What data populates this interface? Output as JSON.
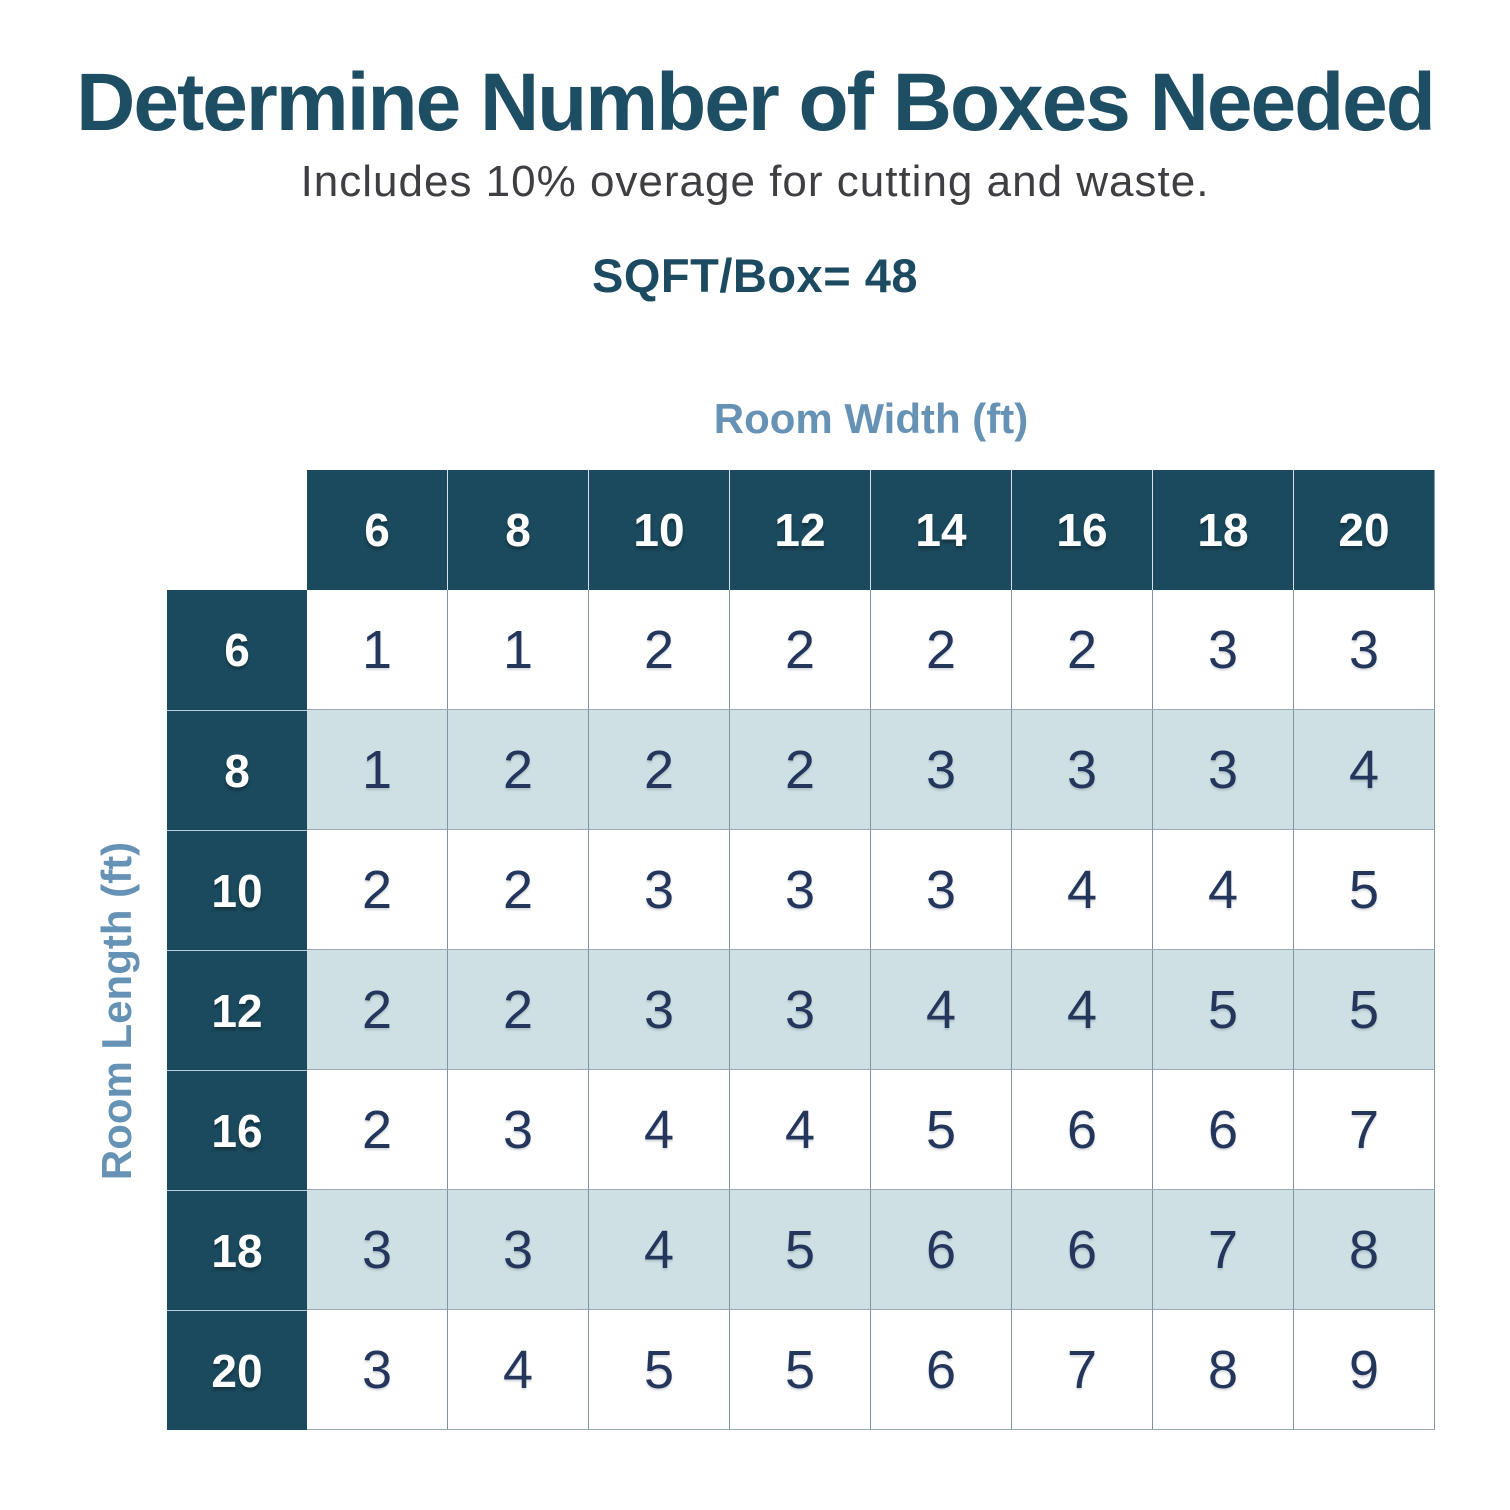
{
  "page": {
    "title": "Determine Number of Boxes Needed",
    "subtitle": "Includes 10% overage for cutting and waste.",
    "sqft_line": "SQFT/Box= 48"
  },
  "colors": {
    "title_text": "#1d4e63",
    "subtitle_text": "#3e3e43",
    "axis_label": "#6693b5",
    "header_bg": "#1b4a5e",
    "header_text": "#ffffff",
    "stripe_row_bg": "#cfe0e4",
    "plain_row_bg": "#ffffff",
    "cell_text": "#24365c",
    "grid_border": "#7e93a4"
  },
  "chart_data": {
    "type": "table",
    "title": "Determine Number of Boxes Needed",
    "subtitle": "Includes 10% overage for cutting and waste.",
    "sqft_per_box": 48,
    "col_axis_label": "Room Width (ft)",
    "row_axis_label": "Room Length (ft)",
    "col_headers": [
      6,
      8,
      10,
      12,
      14,
      16,
      18,
      20
    ],
    "row_headers": [
      6,
      8,
      10,
      12,
      16,
      18,
      20
    ],
    "rows": [
      [
        1,
        1,
        2,
        2,
        2,
        2,
        3,
        3
      ],
      [
        1,
        2,
        2,
        2,
        3,
        3,
        3,
        4
      ],
      [
        2,
        2,
        3,
        3,
        3,
        4,
        4,
        5
      ],
      [
        2,
        2,
        3,
        3,
        4,
        4,
        5,
        5
      ],
      [
        2,
        3,
        4,
        4,
        5,
        6,
        6,
        7
      ],
      [
        3,
        3,
        4,
        5,
        6,
        6,
        7,
        8
      ],
      [
        3,
        4,
        5,
        5,
        6,
        7,
        8,
        9
      ]
    ],
    "layout": {
      "striped_row_headers": [
        8,
        12,
        18
      ],
      "grid": true,
      "legend": false
    }
  }
}
